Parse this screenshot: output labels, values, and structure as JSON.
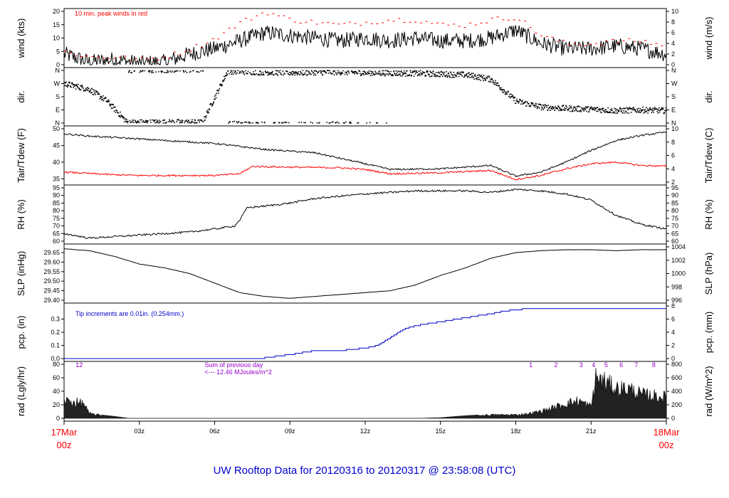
{
  "title": "UW Rooftop Data for 20120316  to  20120317 @ 23:58:08  (UTC)",
  "colors": {
    "axis": "#000000",
    "peak": "#ff0000",
    "tair": "#000000",
    "tdew": "#ff0000",
    "pcp": "#0000cc",
    "rad_annot": "#9900cc",
    "title": "#0000cc",
    "date_label": "#ff0000"
  },
  "x_axis": {
    "ticks": [
      "03z",
      "06z",
      "09z",
      "12z",
      "15z",
      "18z",
      "21z"
    ],
    "start_label": [
      "17Mar",
      "00z"
    ],
    "end_label": [
      "18Mar",
      "00z"
    ]
  },
  "chart_data": [
    {
      "id": "wind",
      "type": "line",
      "ylabel_left": "wind (kts)",
      "ylabel_right": "wind (m/s)",
      "ylim": [
        0,
        20
      ],
      "yticks_left": [
        "0",
        "5",
        "10",
        "15",
        "20"
      ],
      "yticks_right": [
        "0",
        "2",
        "4",
        "6",
        "8",
        "10"
      ],
      "annotation": "10 min. peak winds in red",
      "series": [
        {
          "x": [
            0,
            1,
            2,
            3,
            4,
            5,
            6,
            7,
            8,
            9,
            10,
            11,
            12,
            13,
            14,
            15,
            16,
            17,
            18,
            19,
            20,
            21,
            22,
            23,
            24
          ],
          "values": [
            4,
            1,
            2,
            0.5,
            1,
            4,
            6,
            9,
            12,
            11,
            10,
            9,
            10,
            9,
            10,
            9,
            9,
            10,
            13,
            8,
            6,
            6,
            7,
            6,
            4
          ]
        },
        {
          "name": "10 min. peak winds",
          "x": [
            0,
            1,
            2,
            3,
            4,
            5,
            6,
            7,
            8,
            9,
            10,
            11,
            12,
            13,
            14,
            15,
            16,
            17,
            18,
            19,
            20,
            21,
            22,
            23,
            24
          ],
          "values": [
            5,
            3,
            3,
            2,
            3,
            6,
            10,
            16,
            20,
            17,
            16,
            15,
            16,
            17,
            17,
            15,
            15,
            17,
            18,
            11,
            8,
            8,
            9,
            9,
            7
          ]
        }
      ]
    },
    {
      "id": "dir",
      "type": "scatter",
      "ylabel_left": "dir.",
      "ylabel_right": "dir.",
      "yticks_left": [
        "N",
        "E",
        "S",
        "W",
        "N"
      ],
      "yticks_right": [
        "N",
        "E",
        "S",
        "W",
        "N"
      ],
      "series": [
        {
          "x": [
            0,
            1,
            1.7,
            2.5,
            4,
            5.5,
            6.5,
            7.5,
            9,
            11,
            12,
            14,
            16,
            17,
            18,
            19,
            20,
            21,
            22,
            23,
            24
          ],
          "values": [
            270,
            230,
            150,
            5,
            5,
            5,
            355,
            350,
            345,
            350,
            345,
            340,
            330,
            300,
            150,
            110,
            100,
            95,
            85,
            90,
            85
          ]
        }
      ]
    },
    {
      "id": "temp",
      "type": "line",
      "ylabel_left": "Tair/Tdew (F)",
      "ylabel_right": "Tair/Tdew (C)",
      "ylim": [
        34,
        50
      ],
      "yticks_left": [
        "35",
        "40",
        "45",
        "50"
      ],
      "yticks_right": [
        "2",
        "4",
        "6",
        "8",
        "10"
      ],
      "series": [
        {
          "name": "Tair",
          "x": [
            0,
            1,
            2,
            4,
            6,
            8,
            10,
            12,
            13,
            15,
            17,
            18,
            19,
            20,
            21,
            22,
            23,
            24
          ],
          "values": [
            48.5,
            47.8,
            47.4,
            46.5,
            45.6,
            43.8,
            42.8,
            39.5,
            37.8,
            38,
            39,
            35.8,
            37,
            40,
            43.5,
            46.5,
            48,
            49
          ]
        },
        {
          "name": "Tdew",
          "x": [
            0,
            2,
            3,
            6,
            7,
            7.5,
            9,
            11,
            12,
            13,
            15,
            17,
            18,
            19,
            20,
            21,
            22,
            23,
            24
          ],
          "values": [
            37,
            36.2,
            36,
            36,
            36.5,
            38.7,
            38.5,
            38.3,
            37.8,
            36.5,
            36.8,
            37.5,
            34.8,
            36,
            38,
            39.5,
            40,
            39,
            38.8
          ]
        }
      ]
    },
    {
      "id": "rh",
      "type": "line",
      "ylabel_left": "RH (%)",
      "ylabel_right": "RH (%)",
      "ylim": [
        60,
        95
      ],
      "yticks_left": [
        "60",
        "65",
        "70",
        "75",
        "80",
        "85",
        "90",
        "95"
      ],
      "yticks_right": [
        "60",
        "65",
        "70",
        "75",
        "80",
        "85",
        "90",
        "95"
      ],
      "series": [
        {
          "x": [
            0,
            1,
            2,
            3,
            4,
            5,
            6,
            6.8,
            7,
            7.3,
            8,
            9,
            10,
            12,
            14,
            16,
            17,
            18,
            19,
            20,
            21,
            22,
            23,
            24
          ],
          "values": [
            65,
            62,
            63,
            64,
            65,
            66,
            68,
            70,
            74,
            82,
            83,
            85,
            88,
            91,
            93,
            93,
            92,
            94,
            93,
            91,
            87,
            77,
            71,
            68
          ]
        }
      ]
    },
    {
      "id": "slp",
      "type": "line",
      "ylabel_left": "SLP (inHg)",
      "ylabel_right": "SLP (hPa)",
      "ylim": [
        29.4,
        29.68
      ],
      "yticks_left": [
        "29.40",
        "29.45",
        "29.50",
        "29.55",
        "29.60",
        "29.65"
      ],
      "yticks_right": [
        "996",
        "998",
        "1000",
        "1002",
        "1004"
      ],
      "series": [
        {
          "x": [
            0,
            1,
            2,
            3,
            4,
            5,
            6,
            7,
            8,
            9,
            10,
            11,
            12,
            13,
            14,
            15,
            16,
            17,
            18,
            19,
            20,
            21,
            22,
            23,
            24
          ],
          "values": [
            29.67,
            29.66,
            29.63,
            29.59,
            29.57,
            29.54,
            29.49,
            29.44,
            29.42,
            29.41,
            29.42,
            29.43,
            29.44,
            29.45,
            29.48,
            29.53,
            29.57,
            29.62,
            29.65,
            29.66,
            29.665,
            29.665,
            29.66,
            29.665,
            29.665
          ]
        }
      ]
    },
    {
      "id": "pcp",
      "type": "line",
      "ylabel_left": "pcp. (in)",
      "ylabel_right": "pcp. (mm)",
      "ylim": [
        0,
        0.4
      ],
      "yticks_left": [
        "0.0",
        "0.1",
        "0.2",
        "0.3"
      ],
      "yticks_right": [
        "0",
        "2",
        "4",
        "6",
        "8"
      ],
      "annotation": "Tip increments are 0.01in. (0.254mm.)",
      "series": [
        {
          "x": [
            0,
            7.8,
            9,
            10,
            11,
            12,
            12.5,
            13,
            13.5,
            14,
            15,
            16,
            17,
            17.5,
            18,
            18.5,
            24
          ],
          "values": [
            0,
            0,
            0.03,
            0.06,
            0.06,
            0.08,
            0.1,
            0.16,
            0.22,
            0.25,
            0.28,
            0.31,
            0.34,
            0.36,
            0.37,
            0.38,
            0.38
          ]
        }
      ]
    },
    {
      "id": "rad",
      "type": "area",
      "ylabel_left": "rad (Lgly/hr)",
      "ylabel_right": "rad (W/m^2)",
      "ylim": [
        0,
        80
      ],
      "yticks_left": [
        "0",
        "20",
        "40",
        "60",
        "80"
      ],
      "yticks_right": [
        "0",
        "200",
        "400",
        "600",
        "800"
      ],
      "annotation_lines": [
        "Sum of previous day",
        "<--- 12.46 MJoules/m^2"
      ],
      "hour_labels": [
        "12",
        "1",
        "2",
        "3",
        "4",
        "5",
        "6",
        "7",
        "8"
      ],
      "series": [
        {
          "x": [
            0,
            0.3,
            0.8,
            1,
            1.5,
            2,
            2.6,
            14,
            15,
            16,
            17,
            18,
            18.5,
            19,
            19.5,
            20,
            20.5,
            21,
            21.2,
            21.4,
            21.6,
            22,
            22.5,
            23,
            23.5,
            24
          ],
          "values": [
            30,
            28,
            25,
            8,
            5,
            3,
            0,
            0,
            1,
            4,
            6,
            6,
            8,
            12,
            18,
            25,
            30,
            20,
            70,
            65,
            60,
            50,
            50,
            40,
            38,
            35
          ]
        }
      ]
    }
  ]
}
